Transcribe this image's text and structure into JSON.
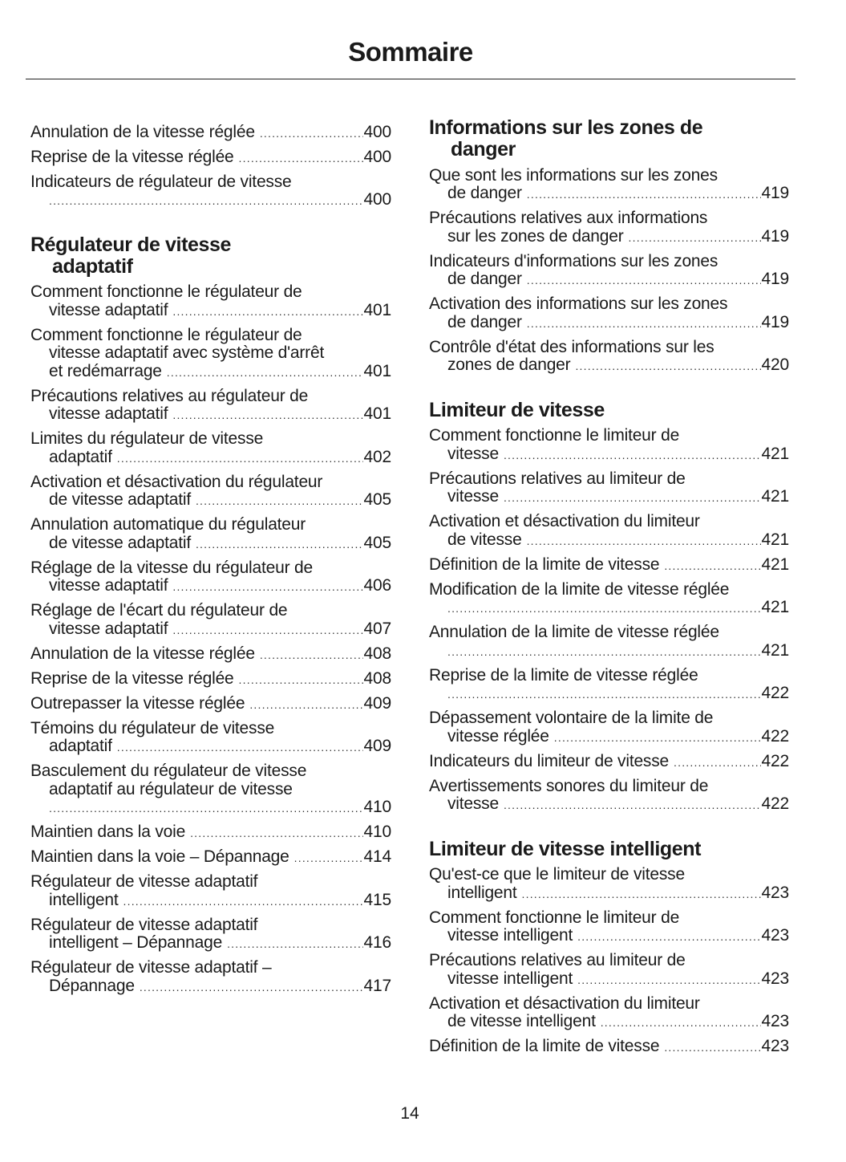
{
  "title": "Sommaire",
  "page_number": "14",
  "columns": [
    {
      "sections": [
        {
          "heading": [],
          "entries": [
            {
              "lines": [],
              "last": "Annulation de la vitesse réglée",
              "page": "400"
            },
            {
              "lines": [],
              "last": "Reprise de la vitesse réglée",
              "page": "400"
            },
            {
              "lines": [
                "Indicateurs de régulateur de vitesse"
              ],
              "last": "",
              "page": "400"
            }
          ]
        },
        {
          "heading": [
            "Régulateur de vitesse",
            "adaptatif"
          ],
          "entries": [
            {
              "lines": [
                "Comment fonctionne le régulateur de"
              ],
              "last": "vitesse adaptatif",
              "page": "401"
            },
            {
              "lines": [
                "Comment fonctionne le régulateur de",
                "vitesse adaptatif avec système d'arrêt"
              ],
              "last": "et redémarrage",
              "page": "401"
            },
            {
              "lines": [
                "Précautions relatives au régulateur de"
              ],
              "last": "vitesse adaptatif",
              "page": "401"
            },
            {
              "lines": [
                "Limites du régulateur de vitesse"
              ],
              "last": "adaptatif",
              "page": "402"
            },
            {
              "lines": [
                "Activation et désactivation du régulateur"
              ],
              "last": "de vitesse adaptatif",
              "page": "405"
            },
            {
              "lines": [
                "Annulation automatique du régulateur"
              ],
              "last": "de vitesse adaptatif",
              "page": "405"
            },
            {
              "lines": [
                "Réglage de la vitesse du régulateur de"
              ],
              "last": "vitesse adaptatif",
              "page": "406"
            },
            {
              "lines": [
                "Réglage de l'écart du régulateur de"
              ],
              "last": "vitesse adaptatif",
              "page": "407"
            },
            {
              "lines": [],
              "last": "Annulation de la vitesse réglée",
              "page": "408"
            },
            {
              "lines": [],
              "last": "Reprise de la vitesse réglée",
              "page": "408"
            },
            {
              "lines": [],
              "last": "Outrepasser la vitesse réglée",
              "page": "409"
            },
            {
              "lines": [
                "Témoins du régulateur de vitesse"
              ],
              "last": "adaptatif",
              "page": "409"
            },
            {
              "lines": [
                "Basculement du régulateur de vitesse",
                "adaptatif au régulateur de vitesse"
              ],
              "last": "",
              "page": "410"
            },
            {
              "lines": [],
              "last": "Maintien dans la voie",
              "page": "410"
            },
            {
              "lines": [],
              "last": "Maintien dans la voie – Dépannage",
              "page": "414"
            },
            {
              "lines": [
                "Régulateur de vitesse adaptatif"
              ],
              "last": "intelligent",
              "page": "415"
            },
            {
              "lines": [
                "Régulateur de vitesse adaptatif"
              ],
              "last": "intelligent – Dépannage",
              "page": "416"
            },
            {
              "lines": [
                "Régulateur de vitesse adaptatif –"
              ],
              "last": "Dépannage",
              "page": "417"
            }
          ]
        }
      ]
    },
    {
      "sections": [
        {
          "heading": [
            "Informations sur les zones de",
            "danger"
          ],
          "entries": [
            {
              "lines": [
                "Que sont les informations sur les zones"
              ],
              "last": "de danger",
              "page": "419"
            },
            {
              "lines": [
                "Précautions relatives aux informations"
              ],
              "last": "sur les zones de danger",
              "page": "419"
            },
            {
              "lines": [
                "Indicateurs d'informations sur les zones"
              ],
              "last": "de danger",
              "page": "419"
            },
            {
              "lines": [
                "Activation des informations sur les zones"
              ],
              "last": "de danger",
              "page": "419"
            },
            {
              "lines": [
                "Contrôle d'état des informations sur les"
              ],
              "last": "zones de danger",
              "page": "420"
            }
          ]
        },
        {
          "heading": [
            "Limiteur de vitesse"
          ],
          "entries": [
            {
              "lines": [
                "Comment fonctionne le limiteur de"
              ],
              "last": "vitesse",
              "page": "421"
            },
            {
              "lines": [
                "Précautions relatives au limiteur de"
              ],
              "last": "vitesse",
              "page": "421"
            },
            {
              "lines": [
                "Activation et désactivation du limiteur"
              ],
              "last": "de vitesse",
              "page": "421"
            },
            {
              "lines": [],
              "last": "Définition de la limite de vitesse",
              "page": "421"
            },
            {
              "lines": [
                "Modification de la limite de vitesse réglée"
              ],
              "last": "",
              "page": "421"
            },
            {
              "lines": [
                "Annulation de la limite de vitesse réglée"
              ],
              "last": "",
              "page": "421"
            },
            {
              "lines": [
                "Reprise de la limite de vitesse réglée"
              ],
              "last": "",
              "page": "422"
            },
            {
              "lines": [
                "Dépassement volontaire de la limite de"
              ],
              "last": "vitesse réglée",
              "page": "422"
            },
            {
              "lines": [],
              "last": "Indicateurs du limiteur de vitesse",
              "page": "422"
            },
            {
              "lines": [
                "Avertissements sonores du limiteur de"
              ],
              "last": "vitesse",
              "page": "422"
            }
          ]
        },
        {
          "heading": [
            "Limiteur de vitesse intelligent"
          ],
          "extra_gap": true,
          "entries": [
            {
              "lines": [
                "Qu'est-ce que le limiteur de vitesse"
              ],
              "last": "intelligent",
              "page": "423"
            },
            {
              "lines": [
                "Comment fonctionne le limiteur de"
              ],
              "last": "vitesse intelligent",
              "page": "423"
            },
            {
              "lines": [
                "Précautions relatives au limiteur de"
              ],
              "last": "vitesse intelligent",
              "page": "423"
            },
            {
              "lines": [
                "Activation et désactivation du limiteur"
              ],
              "last": "de vitesse intelligent",
              "page": "423"
            },
            {
              "lines": [],
              "last": "Définition de la limite de vitesse",
              "page": "423"
            }
          ]
        }
      ]
    }
  ]
}
